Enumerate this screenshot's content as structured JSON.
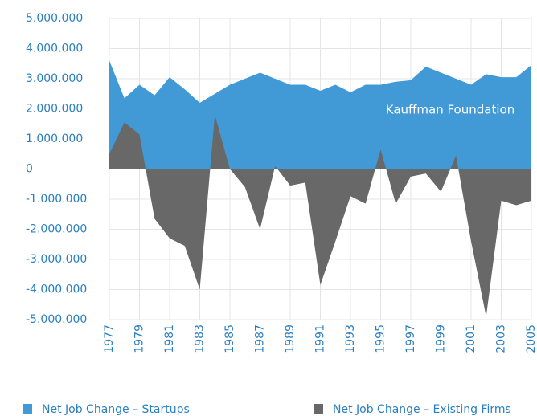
{
  "chart_data": {
    "type": "area",
    "x": [
      1977,
      1978,
      1979,
      1980,
      1981,
      1982,
      1983,
      1984,
      1985,
      1986,
      1987,
      1988,
      1989,
      1990,
      1991,
      1992,
      1993,
      1994,
      1995,
      1996,
      1997,
      1998,
      1999,
      2000,
      2001,
      2002,
      2003,
      2004,
      2005
    ],
    "series": [
      {
        "name": "Net Job Change – Startups",
        "color": "#4199d6",
        "values": [
          3600000,
          2350000,
          2800000,
          2450000,
          3050000,
          2650000,
          2200000,
          2500000,
          2800000,
          3000000,
          3200000,
          3000000,
          2800000,
          2800000,
          2600000,
          2800000,
          2550000,
          2800000,
          2800000,
          2900000,
          2950000,
          3400000,
          3200000,
          3000000,
          2800000,
          3150000,
          3050000,
          3050000,
          3450000
        ]
      },
      {
        "name": "Net Job Change – Existing Firms",
        "color": "#686868",
        "values": [
          500000,
          1550000,
          1150000,
          -1650000,
          -2300000,
          -2550000,
          -4000000,
          1800000,
          0,
          -600000,
          -2000000,
          100000,
          -550000,
          -450000,
          -3850000,
          -2400000,
          -900000,
          -1150000,
          650000,
          -1150000,
          -250000,
          -150000,
          -750000,
          450000,
          -2400000,
          -4900000,
          -1050000,
          -1200000,
          -1050000
        ]
      }
    ],
    "annotation": "Kauffman Foundation",
    "xlim": [
      1977,
      2005
    ],
    "xticks": [
      1977,
      1979,
      1981,
      1983,
      1985,
      1987,
      1989,
      1991,
      1993,
      1995,
      1997,
      1999,
      2001,
      2003,
      2005
    ],
    "ylim": [
      -5000000,
      5000000
    ],
    "yticks": [
      {
        "value": 5000000,
        "label": "5.000.000"
      },
      {
        "value": 4000000,
        "label": "4.000.000"
      },
      {
        "value": 3000000,
        "label": "3.000.000"
      },
      {
        "value": 2000000,
        "label": "2.000.000"
      },
      {
        "value": 1000000,
        "label": "1.000.000"
      },
      0,
      {
        "value": -1000000,
        "label": "-1.000.000"
      },
      {
        "value": -2000000,
        "label": "-2.000.000"
      },
      {
        "value": -3000000,
        "label": "-3.000.000"
      },
      {
        "value": -4000000,
        "label": "-4.000.000"
      },
      {
        "value": -5000000,
        "label": "-5.000.000"
      }
    ],
    "grid": true
  }
}
